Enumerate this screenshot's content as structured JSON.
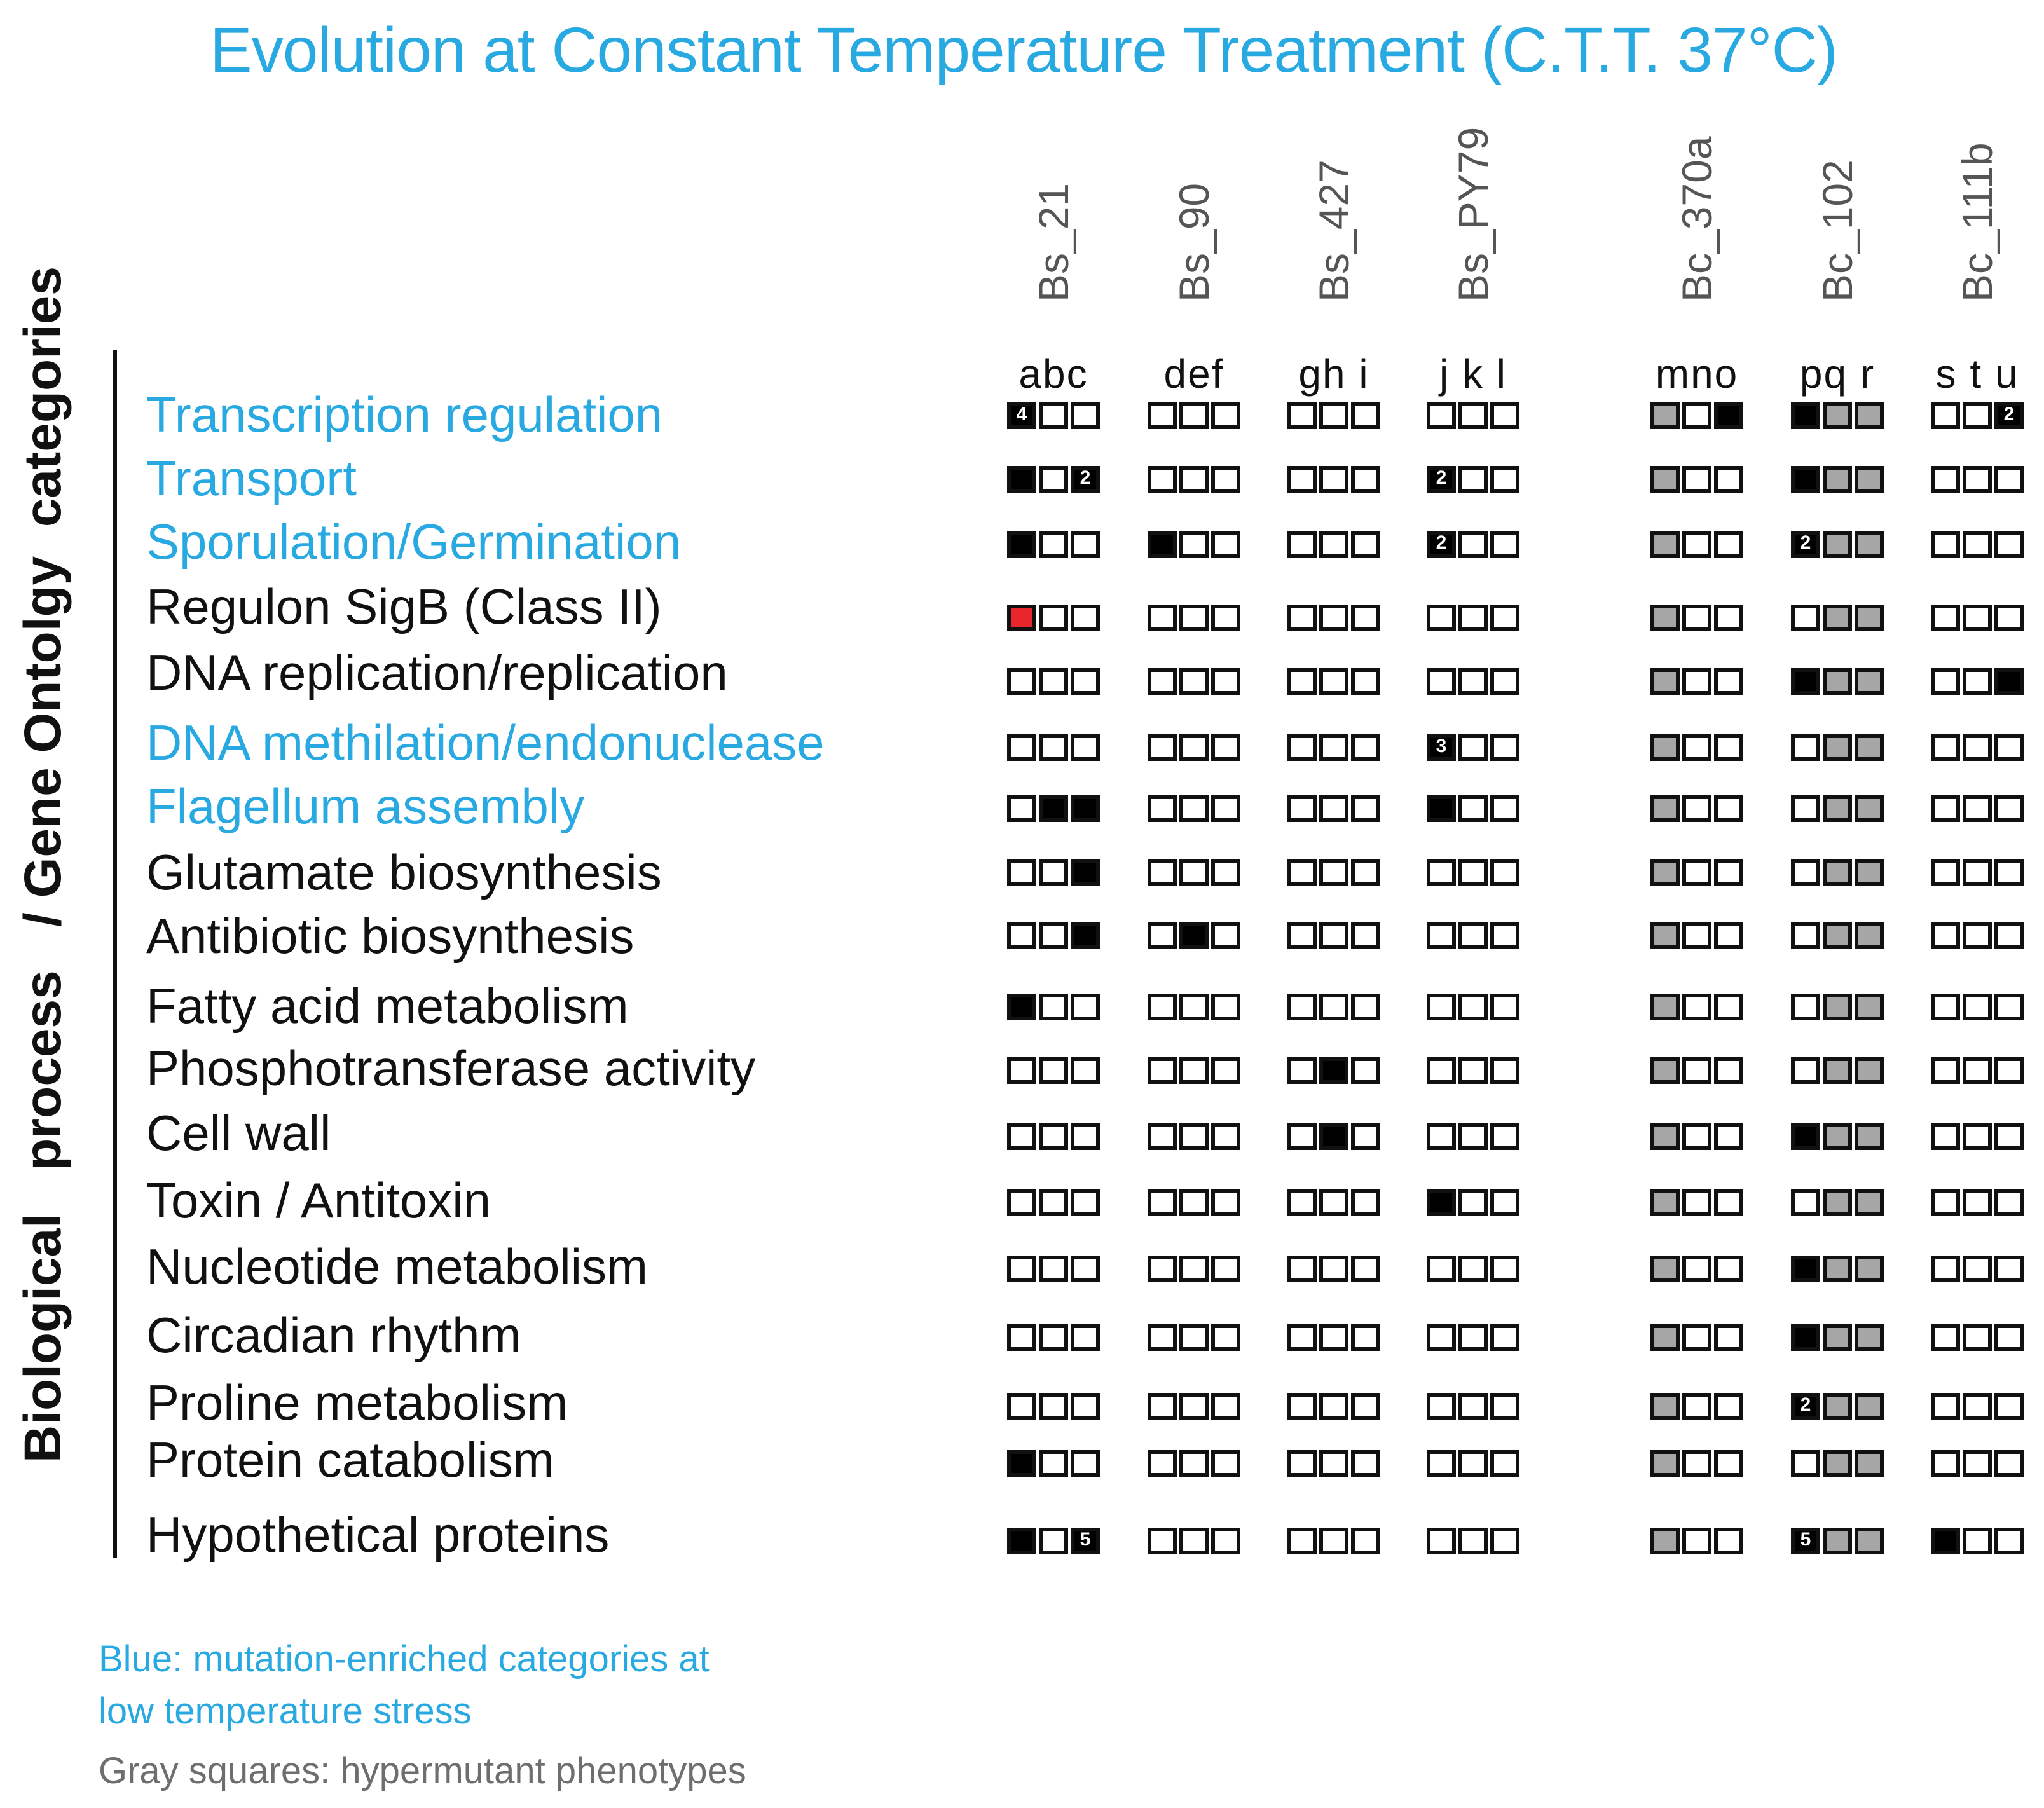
{
  "title": "Evolution at Constant Temperature Treatment  (C.T.T. 37°C)",
  "axis_label": "Biological   process   / Gene Ontolgy  categories",
  "strains": [
    {
      "name": "Bs_21",
      "letters": "abc"
    },
    {
      "name": "Bs_90",
      "letters": "def"
    },
    {
      "name": "Bs_427",
      "letters": "gh i"
    },
    {
      "name": "Bs_PY79",
      "letters": "j k l"
    },
    {
      "name": "Bc_370a",
      "letters": "mno"
    },
    {
      "name": "Bc_102",
      "letters": "pq r"
    },
    {
      "name": "Bc_111b",
      "letters": "s t u"
    }
  ],
  "gray_columns": {
    "Bc_370a": [
      0
    ],
    "Bc_102": [
      1,
      2
    ]
  },
  "categories": [
    {
      "label": "Transcription regulation",
      "enriched": true
    },
    {
      "label": "Transport",
      "enriched": true
    },
    {
      "label": "Sporulation/Germination",
      "enriched": true
    },
    {
      "label": "Regulon SigB (Class II)",
      "enriched": false
    },
    {
      "label": "DNA replication/replication",
      "enriched": false
    },
    {
      "label": "DNA methilation/endonuclease",
      "enriched": true
    },
    {
      "label": "Flagellum assembly",
      "enriched": true
    },
    {
      "label": "Glutamate biosynthesis",
      "enriched": false
    },
    {
      "label": "Antibiotic biosynthesis",
      "enriched": false
    },
    {
      "label": "Fatty acid metabolism",
      "enriched": false
    },
    {
      "label": "Phosphotransferase activity",
      "enriched": false
    },
    {
      "label": "Cell wall",
      "enriched": false
    },
    {
      "label": "Toxin / Antitoxin",
      "enriched": false
    },
    {
      "label": "Nucleotide metabolism",
      "enriched": false
    },
    {
      "label": "Circadian rhythm",
      "enriched": false
    },
    {
      "label": "Proline metabolism",
      "enriched": false
    },
    {
      "label": "Protein catabolism",
      "enriched": false
    },
    {
      "label": "Hypothetical proteins",
      "enriched": false
    }
  ],
  "marks": [
    {
      "row": 0,
      "strain": 0,
      "replicate": 0,
      "fill": "black",
      "count": "4"
    },
    {
      "row": 0,
      "strain": 4,
      "replicate": 2,
      "fill": "black"
    },
    {
      "row": 0,
      "strain": 5,
      "replicate": 0,
      "fill": "black"
    },
    {
      "row": 0,
      "strain": 6,
      "replicate": 2,
      "fill": "black",
      "count": "2"
    },
    {
      "row": 1,
      "strain": 0,
      "replicate": 0,
      "fill": "black"
    },
    {
      "row": 1,
      "strain": 0,
      "replicate": 2,
      "fill": "black",
      "count": "2"
    },
    {
      "row": 1,
      "strain": 3,
      "replicate": 0,
      "fill": "black",
      "count": "2"
    },
    {
      "row": 1,
      "strain": 5,
      "replicate": 0,
      "fill": "black"
    },
    {
      "row": 2,
      "strain": 0,
      "replicate": 0,
      "fill": "black"
    },
    {
      "row": 2,
      "strain": 1,
      "replicate": 0,
      "fill": "black"
    },
    {
      "row": 2,
      "strain": 3,
      "replicate": 0,
      "fill": "black",
      "count": "2"
    },
    {
      "row": 2,
      "strain": 5,
      "replicate": 0,
      "fill": "black",
      "count": "2"
    },
    {
      "row": 3,
      "strain": 0,
      "replicate": 0,
      "fill": "red"
    },
    {
      "row": 4,
      "strain": 5,
      "replicate": 0,
      "fill": "black"
    },
    {
      "row": 4,
      "strain": 6,
      "replicate": 2,
      "fill": "black"
    },
    {
      "row": 5,
      "strain": 3,
      "replicate": 0,
      "fill": "black",
      "count": "3"
    },
    {
      "row": 6,
      "strain": 0,
      "replicate": 1,
      "fill": "black"
    },
    {
      "row": 6,
      "strain": 0,
      "replicate": 2,
      "fill": "black"
    },
    {
      "row": 6,
      "strain": 3,
      "replicate": 0,
      "fill": "black"
    },
    {
      "row": 7,
      "strain": 0,
      "replicate": 2,
      "fill": "black"
    },
    {
      "row": 8,
      "strain": 0,
      "replicate": 2,
      "fill": "black"
    },
    {
      "row": 8,
      "strain": 1,
      "replicate": 1,
      "fill": "black"
    },
    {
      "row": 9,
      "strain": 0,
      "replicate": 0,
      "fill": "black"
    },
    {
      "row": 10,
      "strain": 2,
      "replicate": 1,
      "fill": "black"
    },
    {
      "row": 11,
      "strain": 2,
      "replicate": 1,
      "fill": "black"
    },
    {
      "row": 11,
      "strain": 5,
      "replicate": 0,
      "fill": "black"
    },
    {
      "row": 12,
      "strain": 3,
      "replicate": 0,
      "fill": "black"
    },
    {
      "row": 13,
      "strain": 5,
      "replicate": 0,
      "fill": "black"
    },
    {
      "row": 14,
      "strain": 5,
      "replicate": 0,
      "fill": "black"
    },
    {
      "row": 15,
      "strain": 5,
      "replicate": 0,
      "fill": "black",
      "count": "2"
    },
    {
      "row": 16,
      "strain": 0,
      "replicate": 0,
      "fill": "black"
    },
    {
      "row": 17,
      "strain": 0,
      "replicate": 0,
      "fill": "black"
    },
    {
      "row": 17,
      "strain": 0,
      "replicate": 2,
      "fill": "black",
      "count": "5"
    },
    {
      "row": 17,
      "strain": 5,
      "replicate": 0,
      "fill": "black",
      "count": "5"
    },
    {
      "row": 17,
      "strain": 6,
      "replicate": 0,
      "fill": "black"
    }
  ],
  "legend": {
    "blue_line1": "Blue:   mutation-enriched categories at",
    "blue_line2": "low temperature stress",
    "gray_line": "Gray squares: hypermutant phenotypes"
  },
  "colors": {
    "enriched_text": "#29a9e1",
    "normal_text": "#111111",
    "mutation": "#000000",
    "sigB": "#e8262b",
    "hypermutant": "#a6a6a6"
  }
}
